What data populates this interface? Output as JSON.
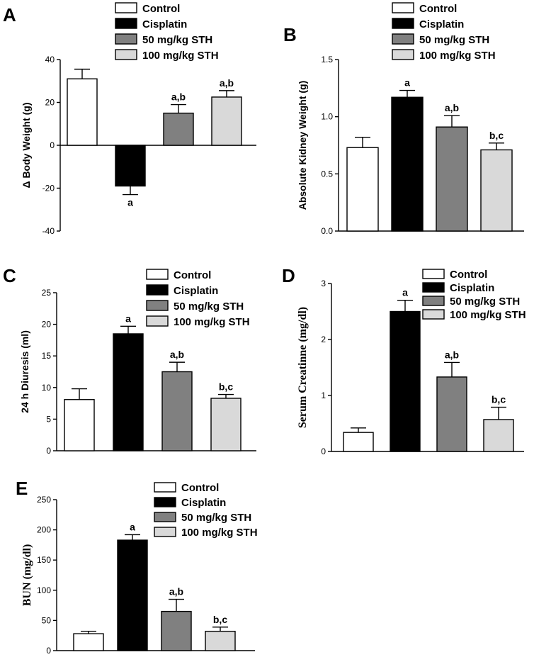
{
  "legend_colors": {
    "Control": "#ffffff",
    "Cisplatin": "#000000",
    "50 mg/kg STH": "#808080",
    "100 mg/kg STH": "#d9d9d9"
  },
  "chart_data": [
    {
      "type": "bar",
      "panel": "A",
      "categories": [
        "Control",
        "Cisplatin",
        "50 mg/kg STH",
        "100 mg/kg STH"
      ],
      "values": [
        31,
        -19,
        15,
        22.5
      ],
      "errors": [
        4.5,
        4,
        4,
        3
      ],
      "annotations": [
        "",
        "a",
        "a,b",
        "a,b"
      ],
      "ylabel": "Δ Body Weight (g)",
      "ylim": [
        -40,
        40
      ],
      "yticks": [
        -40,
        -20,
        0,
        20,
        40
      ],
      "ytick_labels": [
        "-40",
        "-20",
        "0",
        "20",
        "40"
      ],
      "legend": [
        "Control",
        "Cisplatin",
        "50 mg/kg STH",
        "100 mg/kg STH"
      ]
    },
    {
      "type": "bar",
      "panel": "B",
      "categories": [
        "Control",
        "Cisplatin",
        "50 mg/kg STH",
        "100 mg/kg STH"
      ],
      "values": [
        0.73,
        1.17,
        0.91,
        0.71
      ],
      "errors": [
        0.09,
        0.06,
        0.1,
        0.06
      ],
      "annotations": [
        "",
        "a",
        "a,b",
        "b,c"
      ],
      "ylabel": "Absolute Kidney Weight (g)",
      "ylim": [
        0,
        1.5
      ],
      "yticks": [
        0,
        0.5,
        1.0,
        1.5
      ],
      "ytick_labels": [
        "0.0",
        "0.5",
        "1.0",
        "1.5"
      ],
      "legend": [
        "Control",
        "Cisplatin",
        "50 mg/kg STH",
        "100 mg/kg STH"
      ]
    },
    {
      "type": "bar",
      "panel": "C",
      "categories": [
        "Control",
        "Cisplatin",
        "50 mg/kg STH",
        "100 mg/kg STH"
      ],
      "values": [
        8.1,
        18.5,
        12.5,
        8.3
      ],
      "errors": [
        1.7,
        1.2,
        1.5,
        0.6
      ],
      "annotations": [
        "",
        "a",
        "a,b",
        "b,c"
      ],
      "ylabel": "24 h Diuresis (ml)",
      "ylim": [
        0,
        25
      ],
      "yticks": [
        0,
        5,
        10,
        15,
        20,
        25
      ],
      "ytick_labels": [
        "0",
        "5",
        "10",
        "15",
        "20",
        "25"
      ],
      "legend": [
        "Control",
        "Cisplatin",
        "50 mg/kg STH",
        "100 mg/kg STH"
      ]
    },
    {
      "type": "bar",
      "panel": "D",
      "categories": [
        "Control",
        "Cisplatin",
        "50 mg/kg STH",
        "100 mg/kg STH"
      ],
      "values": [
        0.34,
        2.5,
        1.33,
        0.57
      ],
      "errors": [
        0.08,
        0.2,
        0.26,
        0.22
      ],
      "annotations": [
        "",
        "a",
        "a,b",
        "b,c"
      ],
      "ylabel": "Serum Creatinne (mg/dl)",
      "ylim": [
        0,
        3
      ],
      "yticks": [
        0,
        1,
        2,
        3
      ],
      "ytick_labels": [
        "0",
        "1",
        "2",
        "3"
      ],
      "legend": [
        "Control",
        "Cisplatin",
        "50 mg/kg STH",
        "100 mg/kg STH"
      ]
    },
    {
      "type": "bar",
      "panel": "E",
      "categories": [
        "Control",
        "Cisplatin",
        "50 mg/kg STH",
        "100 mg/kg STH"
      ],
      "values": [
        28,
        183,
        65,
        32
      ],
      "errors": [
        4,
        9,
        20,
        7
      ],
      "annotations": [
        "",
        "a",
        "a,b",
        "b,c"
      ],
      "ylabel": "BUN (mg/dl)",
      "ylim": [
        0,
        250
      ],
      "yticks": [
        0,
        50,
        100,
        150,
        200,
        250
      ],
      "ytick_labels": [
        "0",
        "50",
        "100",
        "150",
        "200",
        "250"
      ],
      "legend": [
        "Control",
        "Cisplatin",
        "50 mg/kg STH",
        "100 mg/kg STH"
      ]
    }
  ]
}
